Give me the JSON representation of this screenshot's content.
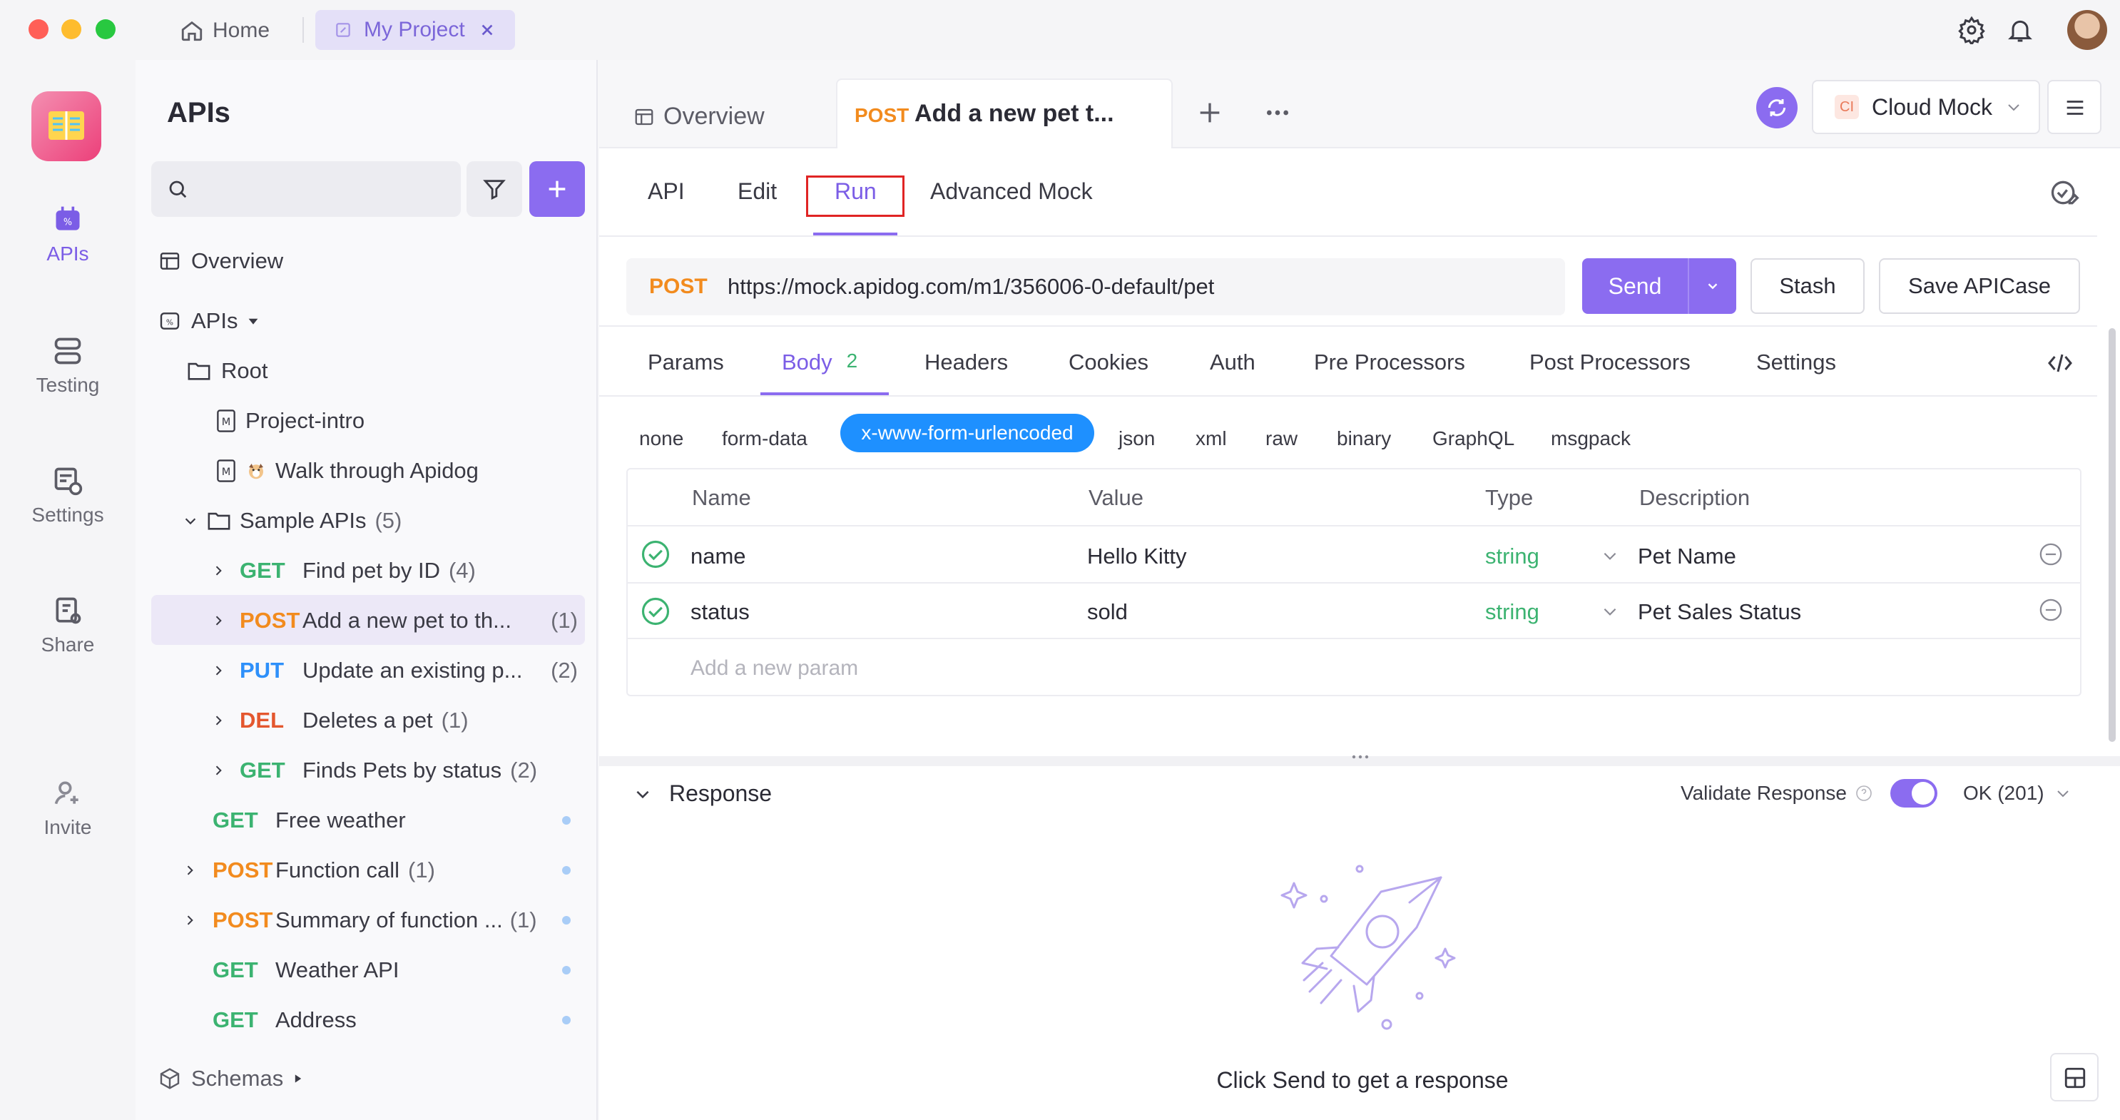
{
  "titlebar": {
    "home_label": "Home",
    "project_tab_label": "My Project",
    "avatar_icon": "user-avatar"
  },
  "rail": {
    "items": [
      {
        "label": "APIs",
        "icon": "apis-icon"
      },
      {
        "label": "Testing",
        "icon": "testing-icon"
      },
      {
        "label": "Settings",
        "icon": "settings-icon"
      },
      {
        "label": "Share",
        "icon": "share-icon"
      },
      {
        "label": "Invite",
        "icon": "invite-icon"
      }
    ]
  },
  "sidebar": {
    "title": "APIs",
    "search_placeholder": "",
    "overview": "Overview",
    "apis": "APIs",
    "root": "Root",
    "project_intro": "Project-intro",
    "walk_through": "Walk through Apidog",
    "sample_apis": "Sample APIs",
    "sample_apis_count": "(5)",
    "endpoints": [
      {
        "method": "GET",
        "name": "Find pet by ID",
        "count": "(4)"
      },
      {
        "method": "POST",
        "name": "Add a new pet to th...",
        "count": "(1)"
      },
      {
        "method": "PUT",
        "name": "Update an existing p...",
        "count": "(2)"
      },
      {
        "method": "DEL",
        "name": "Deletes a pet",
        "count": "(1)"
      },
      {
        "method": "GET",
        "name": "Finds Pets by status",
        "count": "(2)"
      }
    ],
    "root_endpoints": [
      {
        "method": "GET",
        "name": "Free weather",
        "count": ""
      },
      {
        "method": "POST",
        "name": "Function call",
        "count": "(1)"
      },
      {
        "method": "POST",
        "name": "Summary of function ...",
        "count": "(1)"
      },
      {
        "method": "GET",
        "name": "Weather API",
        "count": ""
      },
      {
        "method": "GET",
        "name": "Address",
        "count": ""
      }
    ],
    "schemas": "Schemas"
  },
  "tabs": {
    "overview": "Overview",
    "active_method": "POST",
    "active_name": "Add a new pet t...",
    "cloud_mock": "Cloud Mock",
    "cloud_mock_badge": "CI"
  },
  "subtabs": {
    "api": "API",
    "edit": "Edit",
    "run": "Run",
    "advanced_mock": "Advanced Mock"
  },
  "request": {
    "method": "POST",
    "url": "https://mock.apidog.com/m1/356006-0-default/pet",
    "send": "Send",
    "stash": "Stash",
    "save_case": "Save APICase"
  },
  "req_tabs": {
    "params": "Params",
    "body": "Body",
    "body_count": "2",
    "headers": "Headers",
    "cookies": "Cookies",
    "auth": "Auth",
    "pre": "Pre Processors",
    "post": "Post Processors",
    "settings": "Settings"
  },
  "content_types": [
    "none",
    "form-data",
    "x-www-form-urlencoded",
    "json",
    "xml",
    "raw",
    "binary",
    "GraphQL",
    "msgpack"
  ],
  "params_table": {
    "headers": [
      "Name",
      "Value",
      "Type",
      "Description"
    ],
    "rows": [
      {
        "name": "name",
        "value": "Hello Kitty",
        "type": "string",
        "description": "Pet Name"
      },
      {
        "name": "status",
        "value": "sold",
        "type": "string",
        "description": "Pet Sales Status"
      }
    ],
    "add_placeholder": "Add a new param"
  },
  "response": {
    "title": "Response",
    "validate_label": "Validate Response",
    "status": "OK (201)",
    "empty_message": "Click Send to get a response"
  },
  "colors": {
    "accent": "#8b6cf0",
    "get": "#3cb371",
    "post": "#f28b1e",
    "put": "#2e90fa",
    "del": "#e4572e",
    "selected_content_type": "#1e90ff"
  }
}
